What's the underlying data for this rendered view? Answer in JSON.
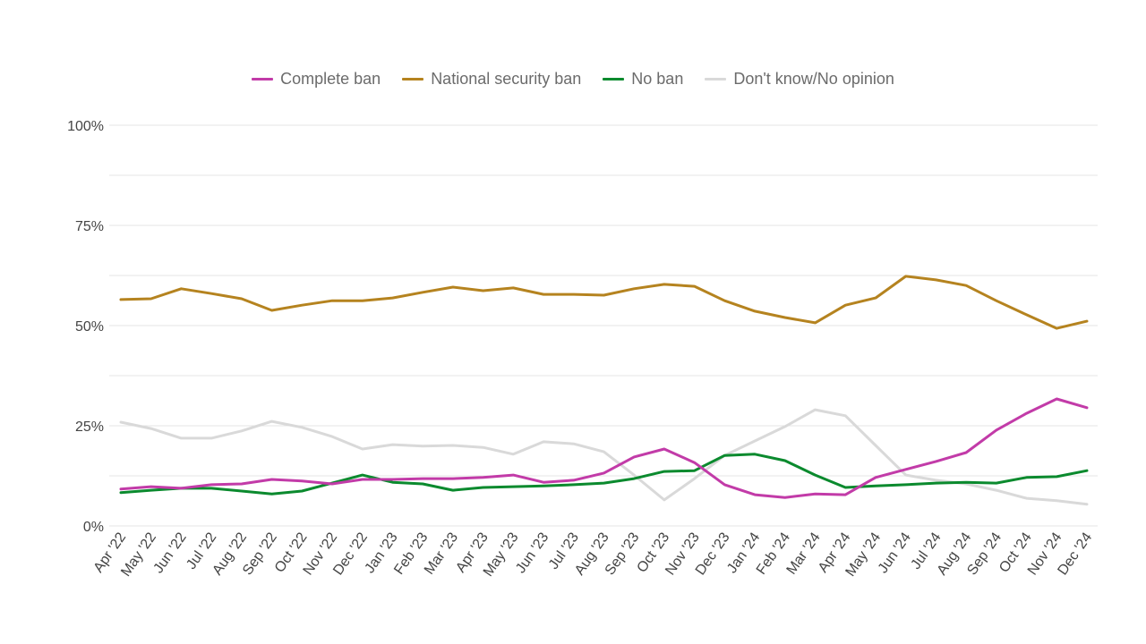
{
  "chart_data": {
    "type": "line",
    "title": "",
    "xlabel": "",
    "ylabel": "",
    "ylim": [
      0,
      100
    ],
    "y_ticks": [
      {
        "value": 0,
        "label": "0%"
      },
      {
        "value": 25,
        "label": "25%"
      },
      {
        "value": 50,
        "label": "50%"
      },
      {
        "value": 75,
        "label": "75%"
      },
      {
        "value": 100,
        "label": "100%"
      }
    ],
    "minor_grid_step": 12.5,
    "grid": true,
    "legend_position": "top-center",
    "x": [
      "Apr '22",
      "May '22",
      "Jun '22",
      "Jul '22",
      "Aug '22",
      "Sep '22",
      "Oct '22",
      "Nov '22",
      "Dec '22",
      "Jan '23",
      "Feb '23",
      "Mar '23",
      "Apr '23",
      "May '23",
      "Jun '23",
      "Jul '23",
      "Aug '23",
      "Sep '23",
      "Oct '23",
      "Nov '23",
      "Dec '23",
      "Jan '24",
      "Feb '24",
      "Mar '24",
      "Apr '24",
      "May '24",
      "Jun '24",
      "Jul '24",
      "Aug '24",
      "Sep '24",
      "Oct '24",
      "Nov '24",
      "Dec '24"
    ],
    "series": [
      {
        "name": "Complete ban",
        "color": "#c23ba8",
        "values": [
          9.2,
          9.8,
          9.4,
          10.3,
          10.5,
          11.6,
          11.2,
          10.5,
          11.6,
          11.6,
          11.8,
          11.8,
          12.1,
          12.7,
          10.9,
          11.4,
          13.2,
          17.2,
          19.2,
          15.8,
          10.3,
          7.8,
          7.1,
          8.0,
          7.8,
          12.1,
          14.1,
          16.1,
          18.3,
          23.9,
          28.1,
          31.7,
          29.5
        ]
      },
      {
        "name": "National security ban",
        "color": "#b5831f",
        "values": [
          56.5,
          56.7,
          59.2,
          58.0,
          56.7,
          53.8,
          55.1,
          56.2,
          56.2,
          56.9,
          58.3,
          59.6,
          58.7,
          59.4,
          57.8,
          57.8,
          57.6,
          59.2,
          60.3,
          59.8,
          56.2,
          53.6,
          52.0,
          50.7,
          55.1,
          56.9,
          62.3,
          61.4,
          60.0,
          56.2,
          52.7,
          49.3,
          51.1
        ]
      },
      {
        "name": "No ban",
        "color": "#0b8a2e",
        "values": [
          8.3,
          8.9,
          9.4,
          9.4,
          8.7,
          8.0,
          8.7,
          10.7,
          12.7,
          10.9,
          10.5,
          8.9,
          9.6,
          9.8,
          10.0,
          10.3,
          10.7,
          11.8,
          13.6,
          13.8,
          17.6,
          17.9,
          16.3,
          12.7,
          9.6,
          10.0,
          10.3,
          10.7,
          10.9,
          10.7,
          12.1,
          12.3,
          13.8
        ]
      },
      {
        "name": "Don't know/No opinion",
        "color": "#d9d9d9",
        "values": [
          25.9,
          24.3,
          21.9,
          21.9,
          23.7,
          26.1,
          24.6,
          22.3,
          19.2,
          20.3,
          19.9,
          20.1,
          19.6,
          17.9,
          21.0,
          20.5,
          18.5,
          12.7,
          6.5,
          11.8,
          17.6,
          21.2,
          24.8,
          29.0,
          27.5,
          20.1,
          12.7,
          11.4,
          10.5,
          8.9,
          6.9,
          6.3,
          5.4
        ]
      }
    ]
  }
}
